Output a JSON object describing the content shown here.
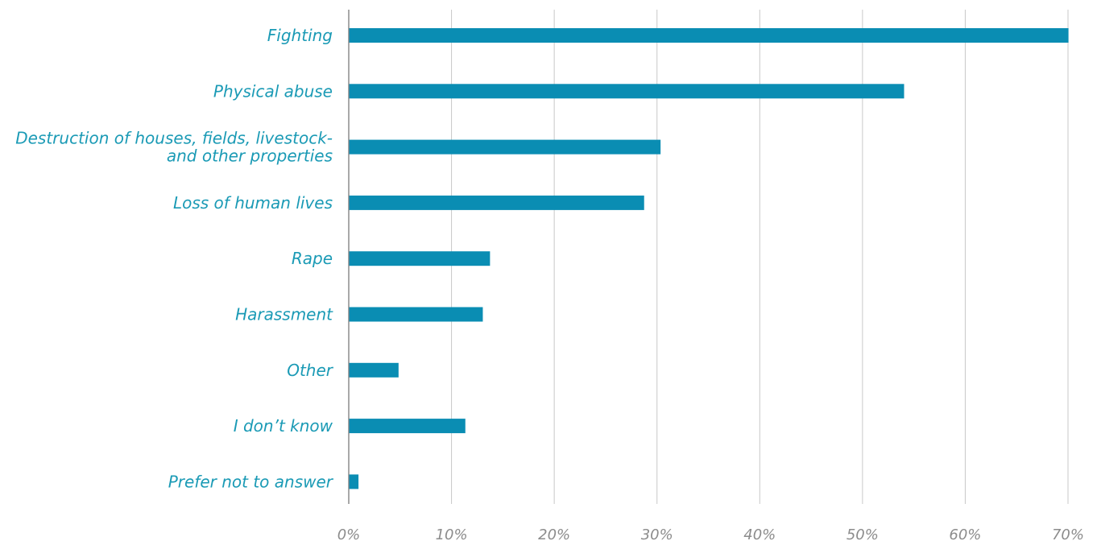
{
  "chart_data": {
    "type": "bar",
    "orientation": "horizontal",
    "categories": [
      [
        "Fighting"
      ],
      [
        "Physical abuse"
      ],
      [
        "Destruction of houses, fields, livestock-",
        "and other properties"
      ],
      [
        "Loss of human lives"
      ],
      [
        "Rape"
      ],
      [
        "Harassment"
      ],
      [
        "Other"
      ],
      [
        "I don’t know"
      ],
      [
        "Prefer not to answer"
      ]
    ],
    "values": [
      70,
      54,
      30.3,
      28.7,
      13.7,
      13,
      4.8,
      11.3,
      0.9
    ],
    "x_ticks": [
      "0%",
      "10%",
      "20%",
      "30%",
      "40%",
      "50%",
      "60%",
      "70%"
    ],
    "xlim": [
      0,
      70
    ],
    "grid": "vertical",
    "legend": "none",
    "colors": {
      "bar": "#0a8db3",
      "label": "#1a9ab5",
      "tick": "#8c8c8c",
      "grid": "#c8c8c8",
      "axis": "#6e6e6e"
    }
  }
}
